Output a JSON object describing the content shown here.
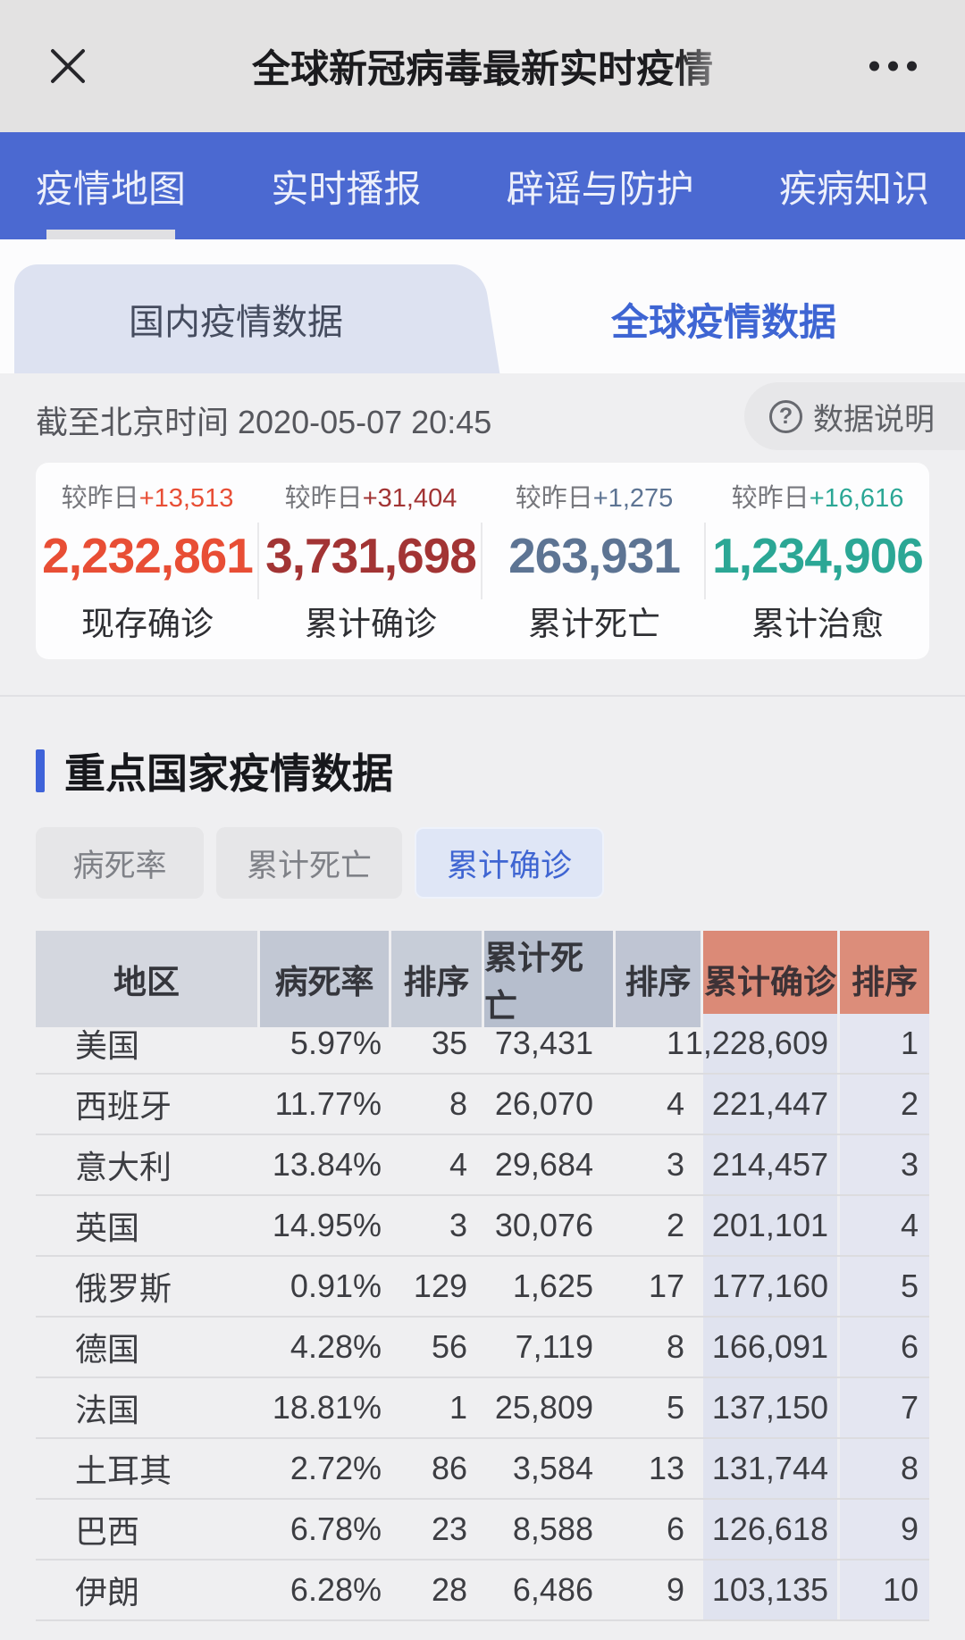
{
  "topbar": {
    "title": "全球新冠病毒最新实时疫情"
  },
  "nav": {
    "items": [
      {
        "label": "疫情地图",
        "active": true
      },
      {
        "label": "实时播报",
        "active": false
      },
      {
        "label": "辟谣与防护",
        "active": false
      },
      {
        "label": "疾病知识",
        "active": false
      }
    ]
  },
  "tabs": {
    "items": [
      {
        "label": "国内疫情数据",
        "active": false
      },
      {
        "label": "全球疫情数据",
        "active": true
      }
    ]
  },
  "meta": {
    "as_of": "截至北京时间 2020-05-07 20:45",
    "data_note_label": "数据说明",
    "data_note_icon": "question-circle"
  },
  "stats": {
    "delta_prefix": "较昨日",
    "items": [
      {
        "delta": "+13,513",
        "value": "2,232,861",
        "label": "现存确诊",
        "color": "#e84e35"
      },
      {
        "delta": "+31,404",
        "value": "3,731,698",
        "label": "累计确诊",
        "color": "#a23434"
      },
      {
        "delta": "+1,275",
        "value": "263,931",
        "label": "累计死亡",
        "color": "#5d7493"
      },
      {
        "delta": "+16,616",
        "value": "1,234,906",
        "label": "累计治愈",
        "color": "#2ba795"
      }
    ]
  },
  "section": {
    "title": "重点国家疫情数据"
  },
  "filters": {
    "items": [
      {
        "label": "病死率",
        "active": false
      },
      {
        "label": "累计死亡",
        "active": false
      },
      {
        "label": "累计确诊",
        "active": true
      }
    ]
  },
  "table": {
    "headers": [
      "地区",
      "病死率",
      "排序",
      "累计死亡",
      "排序",
      "累计确诊",
      "排序"
    ],
    "rows": [
      {
        "region": "美国",
        "fatality_rate": "5.97%",
        "fatality_rank": "35",
        "deaths": "73,431",
        "deaths_rank": "1",
        "confirmed": "1,228,609",
        "confirmed_rank": "1"
      },
      {
        "region": "西班牙",
        "fatality_rate": "11.77%",
        "fatality_rank": "8",
        "deaths": "26,070",
        "deaths_rank": "4",
        "confirmed": "221,447",
        "confirmed_rank": "2"
      },
      {
        "region": "意大利",
        "fatality_rate": "13.84%",
        "fatality_rank": "4",
        "deaths": "29,684",
        "deaths_rank": "3",
        "confirmed": "214,457",
        "confirmed_rank": "3"
      },
      {
        "region": "英国",
        "fatality_rate": "14.95%",
        "fatality_rank": "3",
        "deaths": "30,076",
        "deaths_rank": "2",
        "confirmed": "201,101",
        "confirmed_rank": "4"
      },
      {
        "region": "俄罗斯",
        "fatality_rate": "0.91%",
        "fatality_rank": "129",
        "deaths": "1,625",
        "deaths_rank": "17",
        "confirmed": "177,160",
        "confirmed_rank": "5"
      },
      {
        "region": "德国",
        "fatality_rate": "4.28%",
        "fatality_rank": "56",
        "deaths": "7,119",
        "deaths_rank": "8",
        "confirmed": "166,091",
        "confirmed_rank": "6"
      },
      {
        "region": "法国",
        "fatality_rate": "18.81%",
        "fatality_rank": "1",
        "deaths": "25,809",
        "deaths_rank": "5",
        "confirmed": "137,150",
        "confirmed_rank": "7"
      },
      {
        "region": "土耳其",
        "fatality_rate": "2.72%",
        "fatality_rank": "86",
        "deaths": "3,584",
        "deaths_rank": "13",
        "confirmed": "131,744",
        "confirmed_rank": "8"
      },
      {
        "region": "巴西",
        "fatality_rate": "6.78%",
        "fatality_rank": "23",
        "deaths": "8,588",
        "deaths_rank": "6",
        "confirmed": "126,618",
        "confirmed_rank": "9"
      },
      {
        "region": "伊朗",
        "fatality_rate": "6.28%",
        "fatality_rank": "28",
        "deaths": "6,486",
        "deaths_rank": "9",
        "confirmed": "103,135",
        "confirmed_rank": "10"
      }
    ]
  },
  "colors": {
    "nav_blue": "#4b69d1",
    "active_tab_blue": "#3f65d2",
    "existing_confirmed": "#e84e35",
    "cumulative_confirmed": "#a23434",
    "cumulative_deaths": "#5d7493",
    "cumulative_cured": "#2ba795",
    "confirmed_header_bg": "#db8a77",
    "confirmed_column_bg": "#e0e3ef"
  }
}
